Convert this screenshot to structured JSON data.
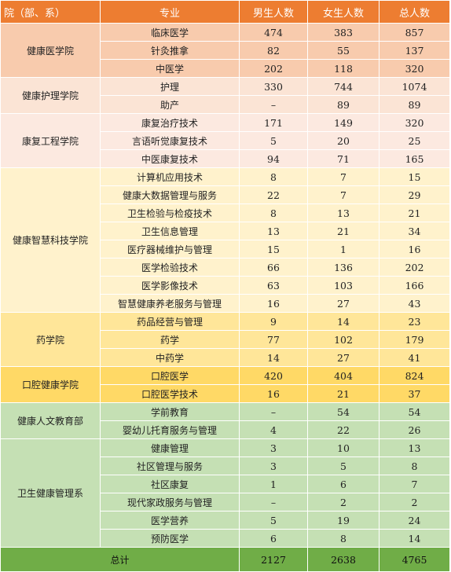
{
  "headers": {
    "dept": "院（部、系）",
    "major": "专业",
    "male": "男生人数",
    "female": "女生人数",
    "total": "总人数"
  },
  "groups": [
    {
      "dept": "健康医学院",
      "color": "#F8CBAD",
      "rows": [
        {
          "major": "临床医学",
          "male": "474",
          "female": "383",
          "total": "857"
        },
        {
          "major": "针灸推拿",
          "male": "82",
          "female": "55",
          "total": "137"
        },
        {
          "major": "中医学",
          "male": "202",
          "female": "118",
          "total": "320"
        }
      ]
    },
    {
      "dept": "健康护理学院",
      "color": "#FBE4D5",
      "rows": [
        {
          "major": "护理",
          "male": "330",
          "female": "744",
          "total": "1074"
        },
        {
          "major": "助产",
          "male": "–",
          "female": "89",
          "total": "89"
        }
      ]
    },
    {
      "dept": "康复工程学院",
      "color": "#FCE9E0",
      "rows": [
        {
          "major": "康复治疗技术",
          "male": "171",
          "female": "149",
          "total": "320"
        },
        {
          "major": "言语听觉康复技术",
          "male": "5",
          "female": "20",
          "total": "25"
        },
        {
          "major": "中医康复技术",
          "male": "94",
          "female": "71",
          "total": "165"
        }
      ]
    },
    {
      "dept": "健康智慧科技学院",
      "color": "#FFF2CC",
      "rows": [
        {
          "major": "计算机应用技术",
          "male": "8",
          "female": "7",
          "total": "15"
        },
        {
          "major": "健康大数据管理与服务",
          "male": "22",
          "female": "7",
          "total": "29"
        },
        {
          "major": "卫生检验与检疫技术",
          "male": "8",
          "female": "13",
          "total": "21"
        },
        {
          "major": "卫生信息管理",
          "male": "13",
          "female": "21",
          "total": "34"
        },
        {
          "major": "医疗器械维护与管理",
          "male": "15",
          "female": "1",
          "total": "16"
        },
        {
          "major": "医学检验技术",
          "male": "66",
          "female": "136",
          "total": "202"
        },
        {
          "major": "医学影像技术",
          "male": "63",
          "female": "103",
          "total": "166"
        },
        {
          "major": "智慧健康养老服务与管理",
          "male": "16",
          "female": "27",
          "total": "43"
        }
      ]
    },
    {
      "dept": "药学院",
      "color": "#FFE699",
      "rows": [
        {
          "major": "药品经营与管理",
          "male": "9",
          "female": "14",
          "total": "23"
        },
        {
          "major": "药学",
          "male": "77",
          "female": "102",
          "total": "179"
        },
        {
          "major": "中药学",
          "male": "14",
          "female": "27",
          "total": "41"
        }
      ]
    },
    {
      "dept": "口腔健康学院",
      "color": "#FFD966",
      "rows": [
        {
          "major": "口腔医学",
          "male": "420",
          "female": "404",
          "total": "824"
        },
        {
          "major": "口腔医学技术",
          "male": "16",
          "female": "21",
          "total": "37"
        }
      ]
    },
    {
      "dept": "健康人文教育部",
      "color": "#C5E0B4",
      "rows": [
        {
          "major": "学前教育",
          "male": "–",
          "female": "54",
          "total": "54"
        },
        {
          "major": "婴幼儿托育服务与管理",
          "male": "4",
          "female": "22",
          "total": "26"
        }
      ]
    },
    {
      "dept": "卫生健康管理系",
      "color": "#C5E0B4",
      "rows": [
        {
          "major": "健康管理",
          "male": "3",
          "female": "10",
          "total": "13"
        },
        {
          "major": "社区管理与服务",
          "male": "3",
          "female": "5",
          "total": "8"
        },
        {
          "major": "社区康复",
          "male": "1",
          "female": "6",
          "total": "7"
        },
        {
          "major": "现代家政服务与管理",
          "male": "–",
          "female": "2",
          "total": "2"
        },
        {
          "major": "医学营养",
          "male": "5",
          "female": "19",
          "total": "24"
        },
        {
          "major": "预防医学",
          "male": "6",
          "female": "8",
          "total": "14"
        }
      ]
    }
  ],
  "footer": {
    "label": "总计",
    "male": "2127",
    "female": "2638",
    "total": "4765"
  }
}
